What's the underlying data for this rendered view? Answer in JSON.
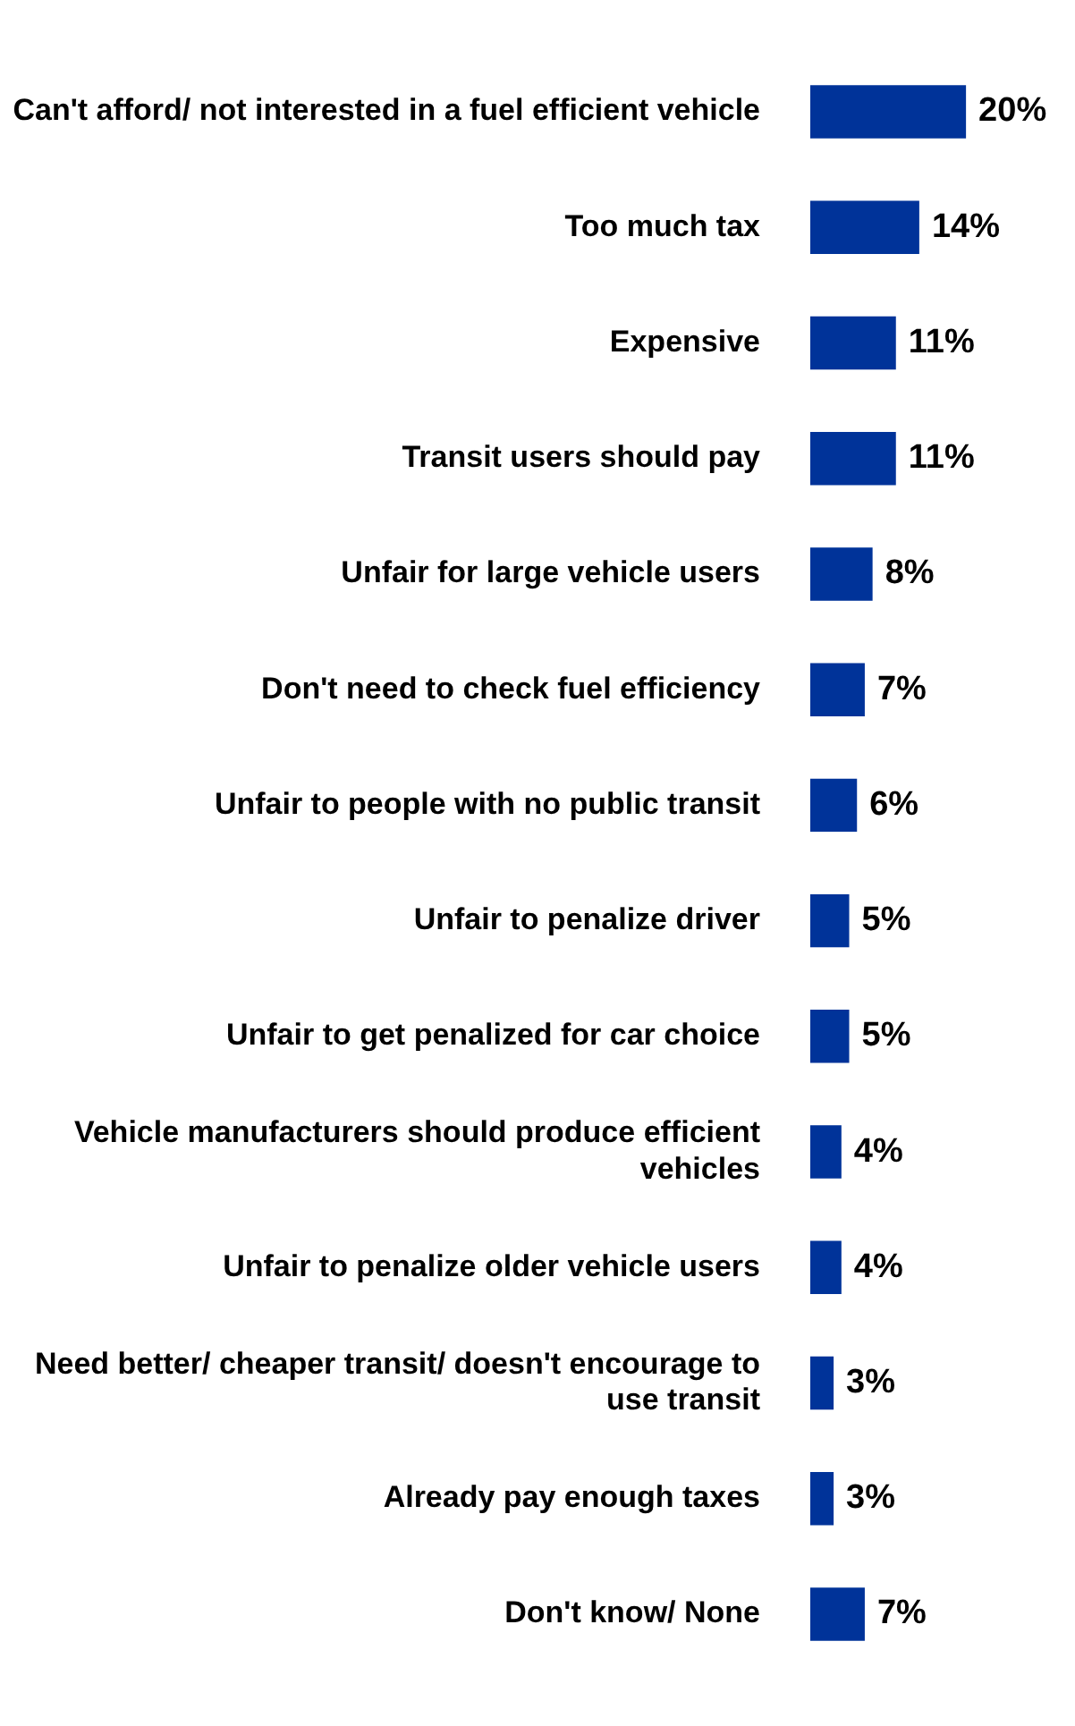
{
  "chart_data": {
    "type": "bar",
    "orientation": "horizontal",
    "data_labels": true,
    "color": "#003399",
    "categories": [
      "Can't afford/ not interested in a fuel efficient vehicle",
      "Too much tax",
      "Expensive",
      "Transit users should pay",
      "Unfair for large vehicle users",
      "Don't need to check fuel efficiency",
      "Unfair to people with no public transit",
      "Unfair to penalize driver",
      "Unfair to get penalized for car choice",
      "Vehicle manufacturers should produce efficient vehicles",
      "Unfair to penalize older vehicle users",
      "Need better/ cheaper transit/ doesn't encourage to use transit",
      "Already pay enough taxes",
      "Don't know/ None"
    ],
    "value_labels": [
      "20%",
      "14%",
      "11%",
      "11%",
      "8%",
      "7%",
      "6%",
      "5%",
      "5%",
      "4%",
      "4%",
      "3%",
      "3%",
      "7%"
    ],
    "values": [
      20,
      14,
      11,
      11,
      8,
      7,
      6,
      5,
      5,
      4,
      4,
      3,
      3,
      7
    ]
  }
}
